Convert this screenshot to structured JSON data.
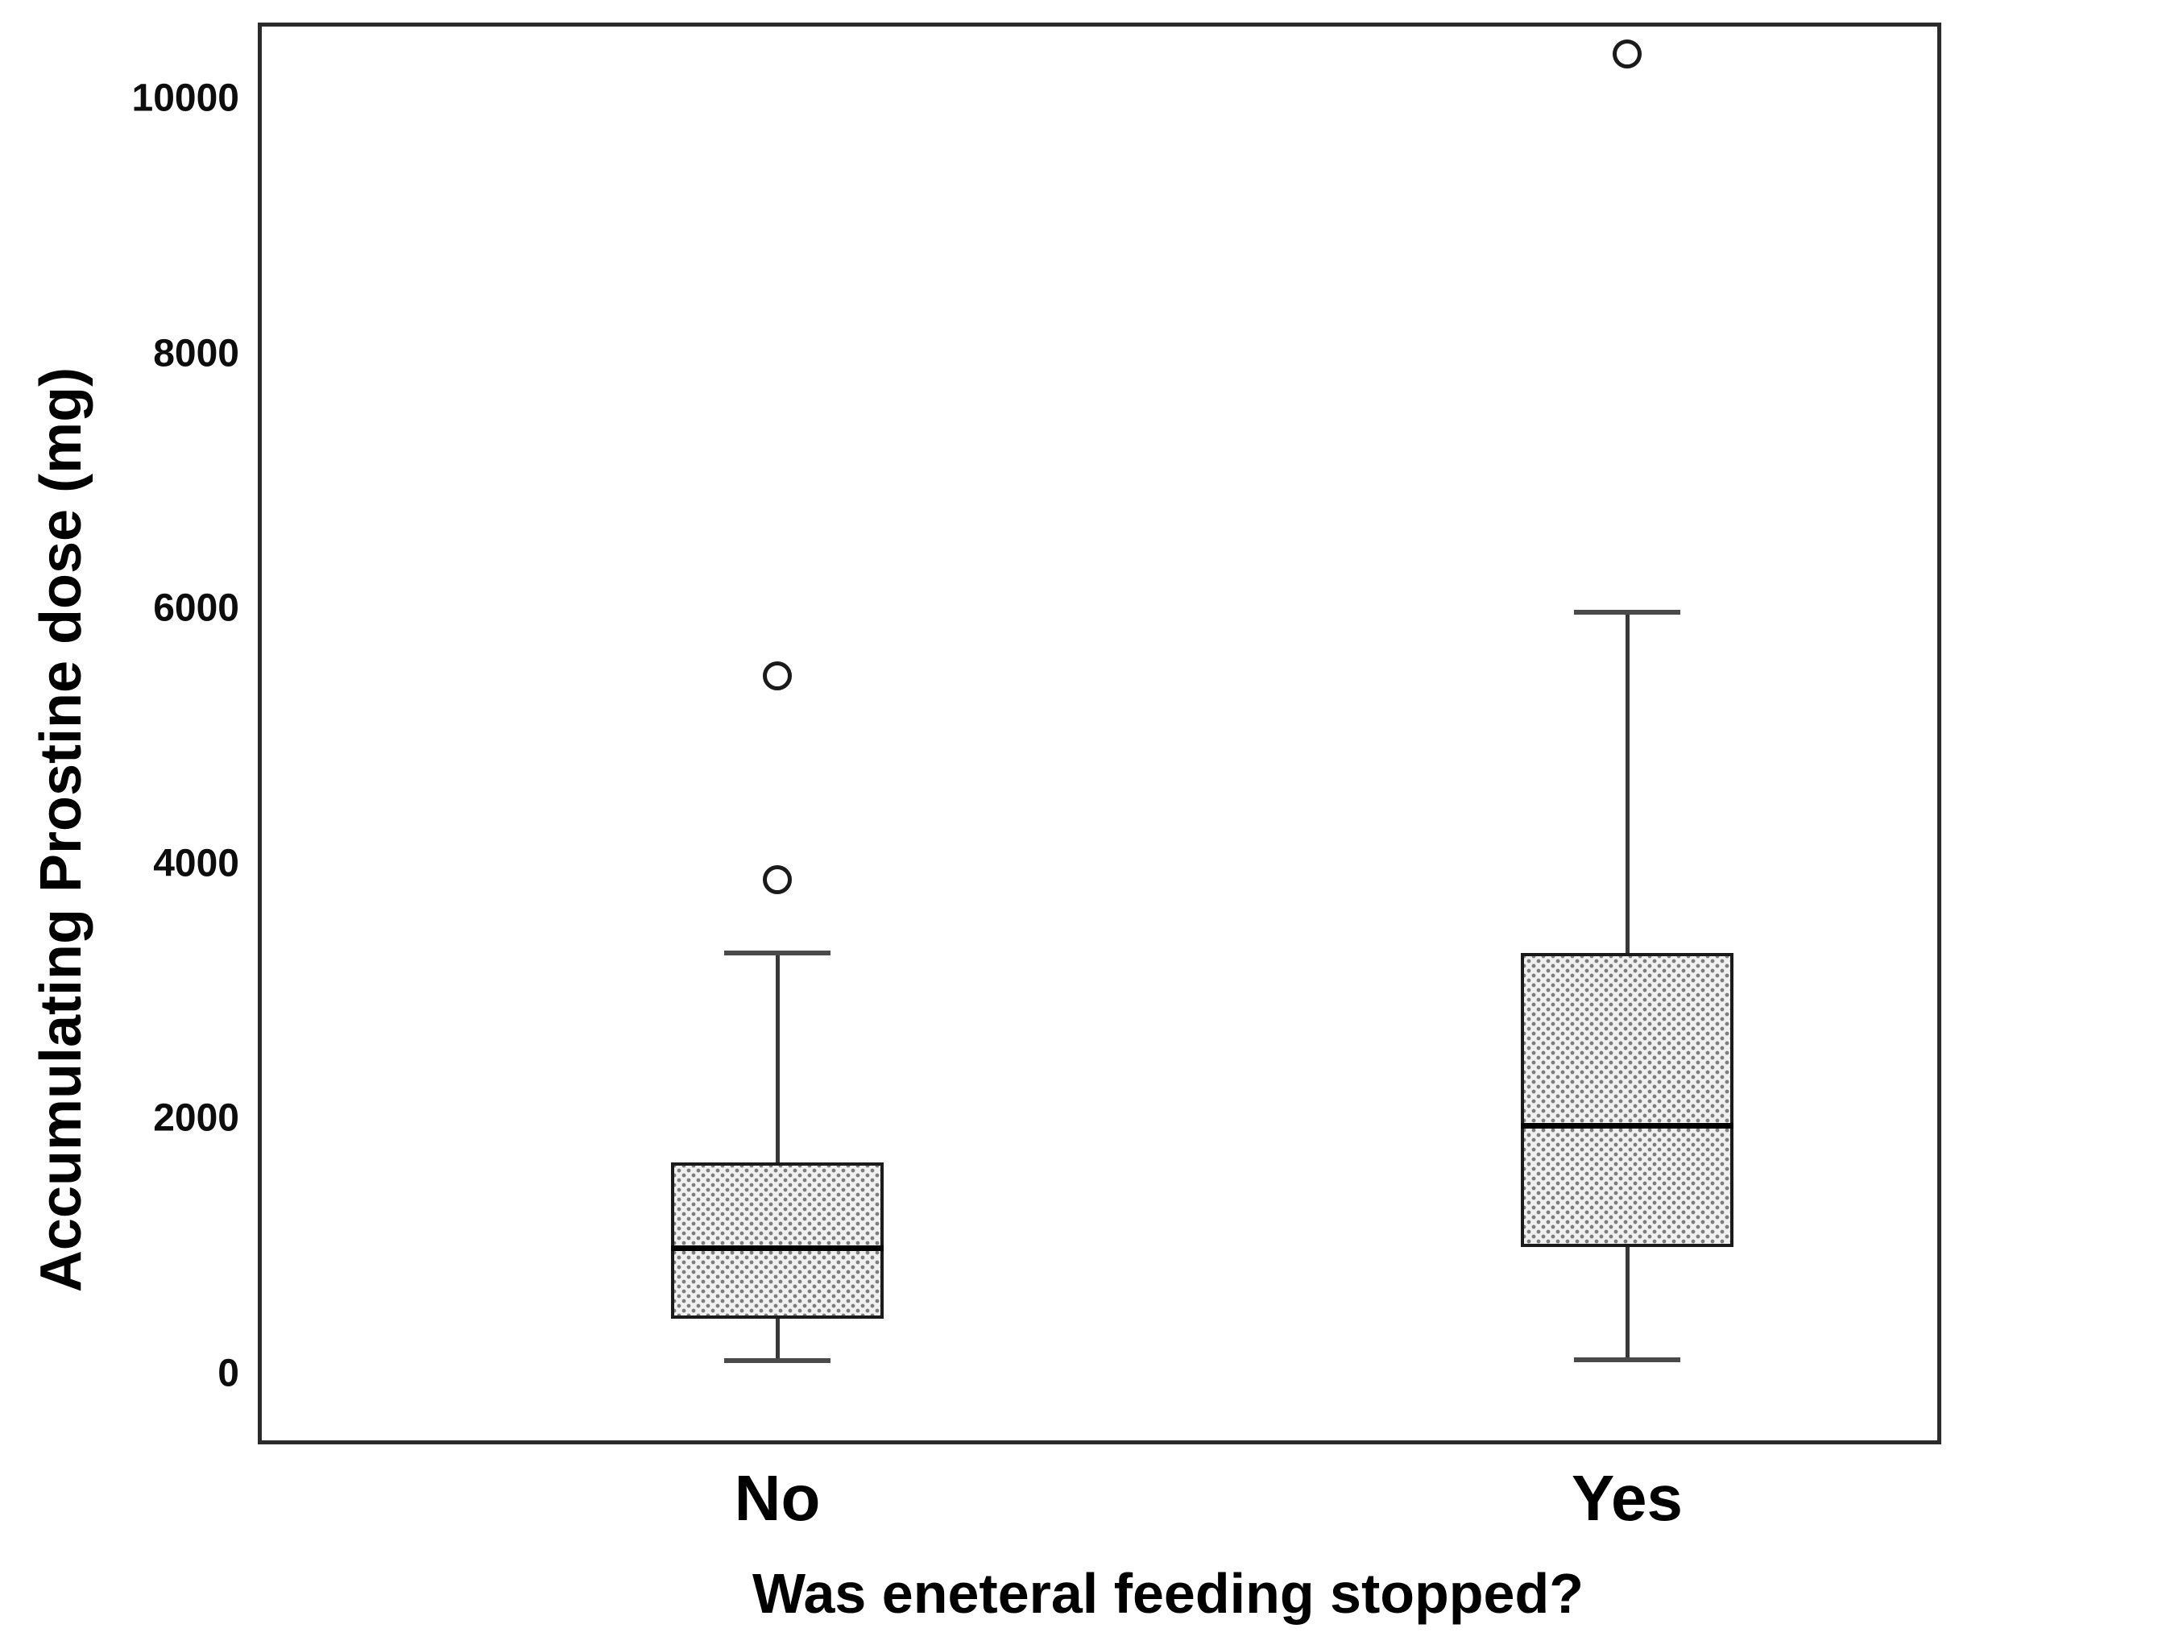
{
  "figure": {
    "background": "#ffffff"
  },
  "chart_data": {
    "type": "boxplot",
    "title": "",
    "xlabel": "Was eneteral feeding stopped?",
    "ylabel": "Accumulating Prostine dose (mg)",
    "categories": [
      "No",
      "Yes"
    ],
    "yticks": [
      0,
      2000,
      4000,
      6000,
      8000,
      10000
    ],
    "ylim": [
      -556,
      10594
    ],
    "grid": false,
    "legend": "none",
    "groups": [
      {
        "label": "No",
        "whisker_low": 100,
        "q1": 430,
        "median": 980,
        "q3": 1655,
        "whisker_high": 3300,
        "outliers": [
          3870,
          5470
        ]
      },
      {
        "label": "Yes",
        "whisker_low": 110,
        "q1": 990,
        "median": 1940,
        "q3": 3300,
        "whisker_high": 5970,
        "outliers": [
          10350
        ]
      }
    ],
    "colors": {
      "box_fill": "#f0f0f0",
      "box_pattern_dot": "#7d7d7d",
      "box_border": "#1b1b1b",
      "median": "#000000",
      "whisker": "#4a4a4a",
      "frame": "#2b2b2b"
    }
  }
}
